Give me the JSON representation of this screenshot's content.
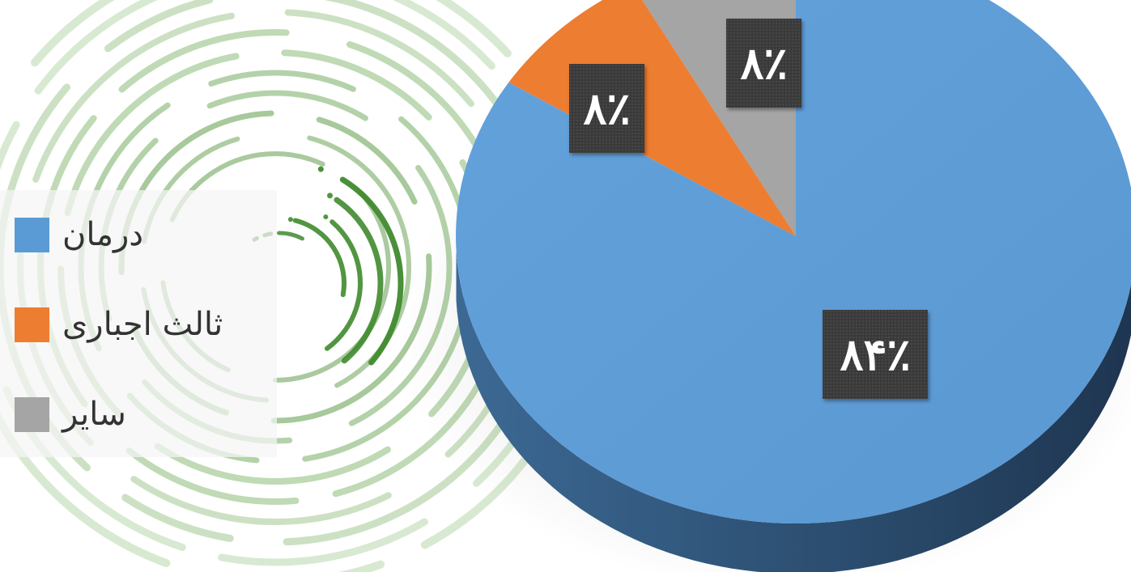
{
  "chart_data": {
    "type": "pie",
    "title": "",
    "categories": [
      "درمان",
      "ثالث اجباری",
      "سایر"
    ],
    "values": [
      84,
      8,
      8
    ],
    "value_labels": [
      "۸۴٪",
      "۸٪",
      "۸٪"
    ],
    "colors": [
      "#5b9bd5",
      "#ed7d31",
      "#a5a5a5"
    ],
    "legend": "left",
    "style": "3d-pie"
  },
  "legend": {
    "items": [
      {
        "label": "درمان",
        "color": "#5b9bd5"
      },
      {
        "label": "ثالث اجباری",
        "color": "#ed7d31"
      },
      {
        "label": "سایر",
        "color": "#a5a5a5"
      }
    ]
  },
  "labels": {
    "slice_main": "۸۴٪",
    "slice_orange": "۸٪",
    "slice_gray": "۸٪"
  }
}
